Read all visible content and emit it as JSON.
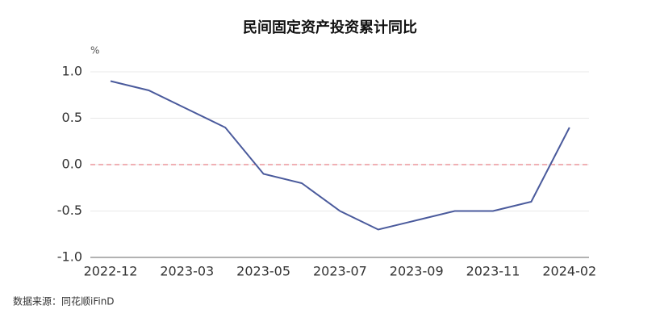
{
  "chart_data": {
    "type": "line",
    "title": "民间固定资产投资累计同比",
    "y_unit": "%",
    "categories": [
      "2022-12",
      null,
      "2023-03",
      null,
      "2023-05",
      null,
      "2023-07",
      null,
      "2023-09",
      null,
      "2023-11",
      null,
      "2024-02"
    ],
    "series": [
      {
        "name": "民间固定资产投资累计同比",
        "color": "#4a5a9c",
        "values": [
          0.9,
          0.8,
          0.6,
          0.4,
          -0.1,
          -0.2,
          -0.5,
          -0.7,
          -0.6,
          -0.5,
          -0.5,
          -0.4,
          0.4
        ]
      }
    ],
    "ylim": [
      -1.0,
      1.0
    ],
    "yticks": [
      {
        "value": -1.0,
        "label": "-1.0"
      },
      {
        "value": -0.5,
        "label": "-0.5"
      },
      {
        "value": 0,
        "label": "0.0"
      },
      {
        "value": 0.5,
        "label": "0.5"
      },
      {
        "value": 1.0,
        "label": "1.0"
      }
    ],
    "reference_line": {
      "value": 0,
      "color": "#e0606a"
    },
    "grid": true,
    "source": "数据来源：同花顺iFinD"
  }
}
